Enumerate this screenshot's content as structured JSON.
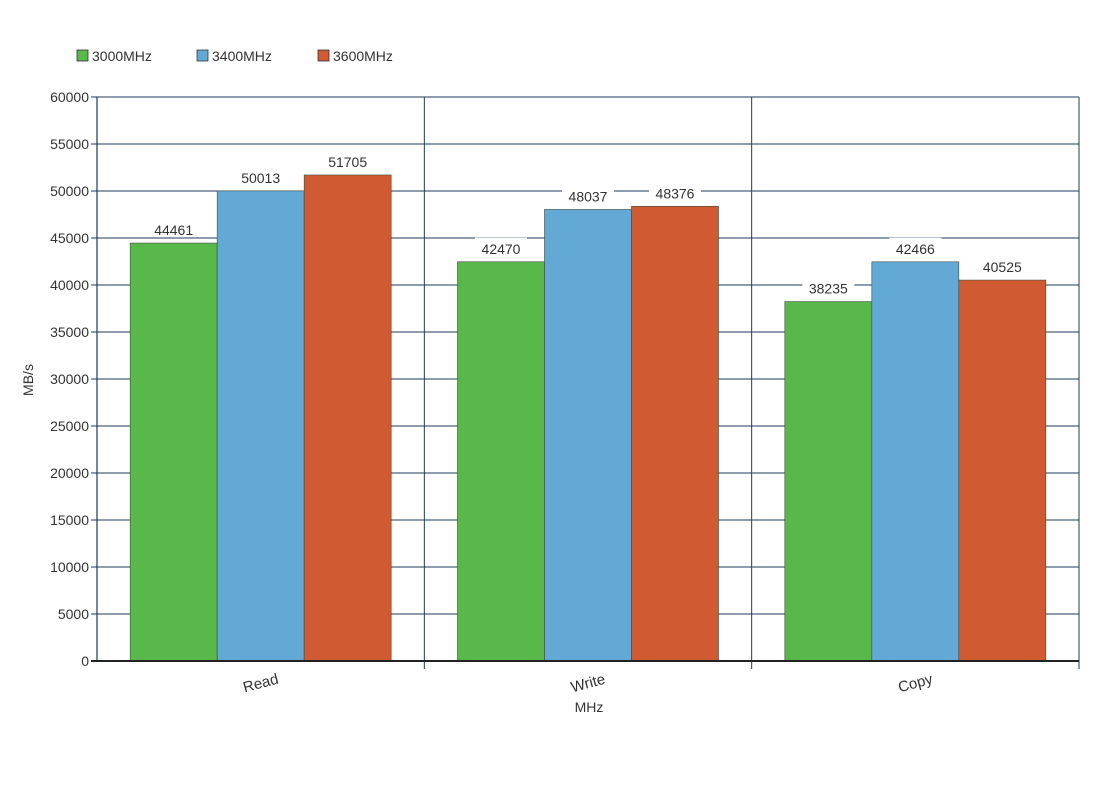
{
  "chart_data": {
    "type": "bar",
    "title": "",
    "categories": [
      "Read",
      "Write",
      "Copy"
    ],
    "series": [
      {
        "name": "3000MHz",
        "color": "#58b84a",
        "values": [
          44461,
          42470,
          38235
        ]
      },
      {
        "name": "3400MHz",
        "color": "#63a9d6",
        "values": [
          50013,
          48037,
          42466
        ]
      },
      {
        "name": "3600MHz",
        "color": "#d05a32",
        "values": [
          51705,
          48376,
          40525
        ]
      }
    ],
    "xlabel": "MHz",
    "ylabel": "MB/s",
    "ylim": [
      0,
      60000
    ],
    "yticks": [
      0,
      5000,
      10000,
      15000,
      20000,
      25000,
      30000,
      35000,
      40000,
      45000,
      50000,
      55000,
      60000
    ],
    "grid": true,
    "legend": "top-left",
    "grid_color": "#1f3a5a",
    "text_color": "#333333"
  }
}
